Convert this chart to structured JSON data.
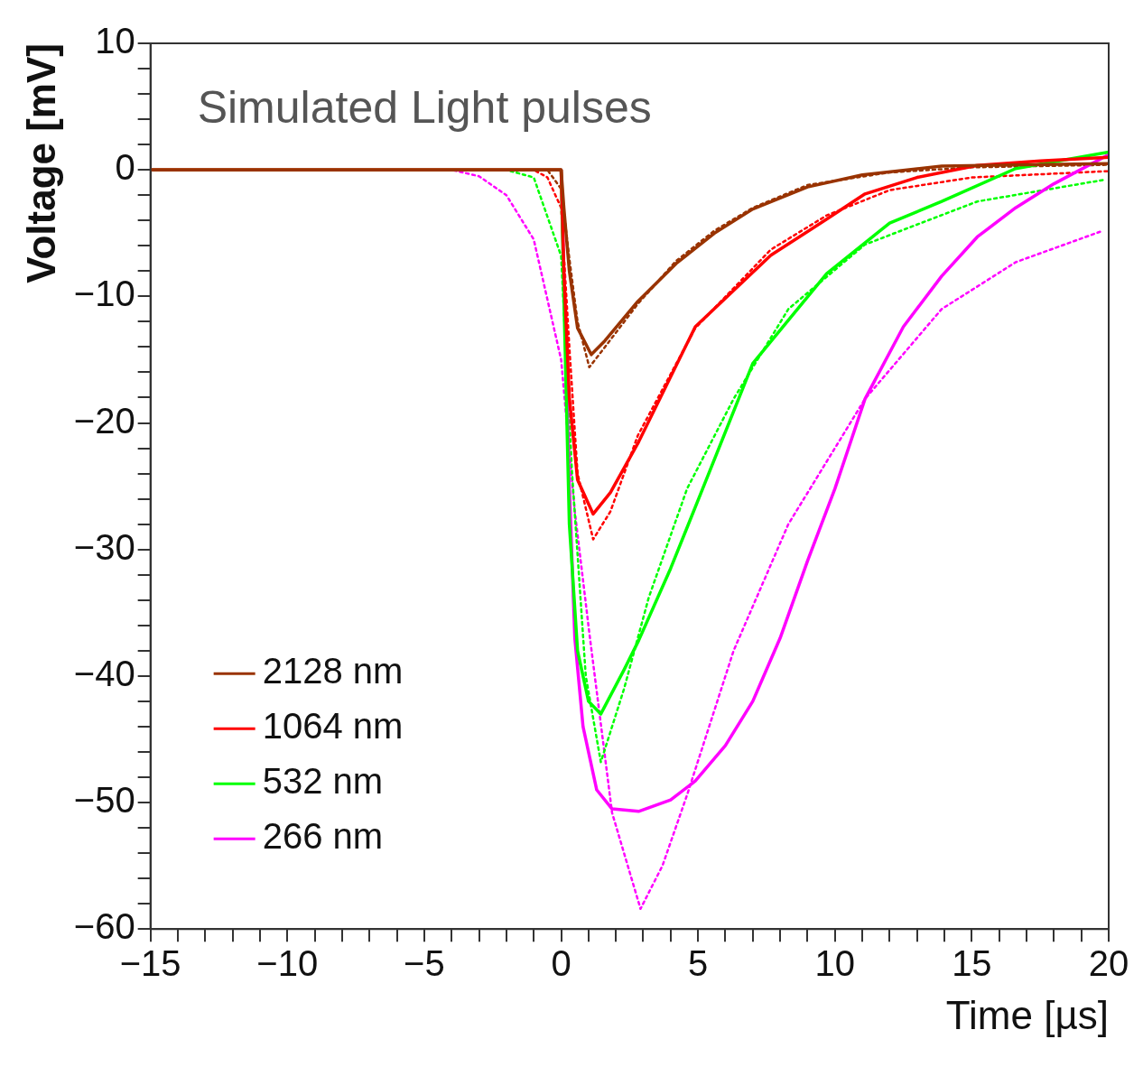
{
  "chart_data": {
    "type": "line",
    "title": "Simulated Light pulses",
    "xlabel": "Time [µs]",
    "ylabel": "Voltage [mV]",
    "xlim": [
      -15,
      20
    ],
    "ylim": [
      -60,
      10
    ],
    "xticks": [
      -15,
      {
        "value": -14,
        "label": null
      },
      {
        "value": -13,
        "label": null
      },
      {
        "value": -12,
        "label": null
      },
      {
        "value": -11,
        "label": null
      },
      -10,
      {
        "value": -9,
        "label": null
      },
      {
        "value": -8,
        "label": null
      },
      {
        "value": -7,
        "label": null
      },
      {
        "value": -6,
        "label": null
      },
      -5,
      {
        "value": -4,
        "label": null
      },
      {
        "value": -3,
        "label": null
      },
      {
        "value": -2,
        "label": null
      },
      {
        "value": -1,
        "label": null
      },
      0,
      {
        "value": 1,
        "label": null
      },
      {
        "value": 2,
        "label": null
      },
      {
        "value": 3,
        "label": null
      },
      {
        "value": 4,
        "label": null
      },
      5,
      {
        "value": 6,
        "label": null
      },
      {
        "value": 7,
        "label": null
      },
      {
        "value": 8,
        "label": null
      },
      {
        "value": 9,
        "label": null
      },
      10,
      {
        "value": 11,
        "label": null
      },
      {
        "value": 12,
        "label": null
      },
      {
        "value": 13,
        "label": null
      },
      {
        "value": 14,
        "label": null
      },
      15,
      {
        "value": 16,
        "label": null
      },
      {
        "value": 17,
        "label": null
      },
      {
        "value": 18,
        "label": null
      },
      {
        "value": 19,
        "label": null
      },
      20
    ],
    "yticks": [
      -60,
      {
        "value": -58,
        "label": null
      },
      {
        "value": -56,
        "label": null
      },
      {
        "value": -54,
        "label": null
      },
      {
        "value": -52,
        "label": null
      },
      -50,
      {
        "value": -48,
        "label": null
      },
      {
        "value": -46,
        "label": null
      },
      {
        "value": -44,
        "label": null
      },
      {
        "value": -42,
        "label": null
      },
      -40,
      {
        "value": -38,
        "label": null
      },
      {
        "value": -36,
        "label": null
      },
      {
        "value": -34,
        "label": null
      },
      {
        "value": -32,
        "label": null
      },
      -30,
      {
        "value": -28,
        "label": null
      },
      {
        "value": -26,
        "label": null
      },
      {
        "value": -24,
        "label": null
      },
      {
        "value": -22,
        "label": null
      },
      -20,
      {
        "value": -18,
        "label": null
      },
      {
        "value": -16,
        "label": null
      },
      {
        "value": -14,
        "label": null
      },
      {
        "value": -12,
        "label": null
      },
      -10,
      {
        "value": -8,
        "label": null
      },
      {
        "value": -6,
        "label": null
      },
      {
        "value": -4,
        "label": null
      },
      {
        "value": -2,
        "label": null
      },
      0,
      {
        "value": 2,
        "label": null
      },
      {
        "value": 4,
        "label": null
      },
      {
        "value": 6,
        "label": null
      },
      {
        "value": 8,
        "label": null
      },
      10
    ],
    "grid": false,
    "legend": "bottom left",
    "marker": "none",
    "series": [
      {
        "name": "2128 nm",
        "color": "#993300",
        "line_style": "solid",
        "x": [
          -15,
          0,
          0.1,
          0.3,
          0.6,
          1.1,
          1.6,
          2.8,
          4.2,
          5.6,
          7,
          9,
          11,
          13.9,
          17,
          20
        ],
        "values": [
          0,
          0,
          -3,
          -8,
          -12.5,
          -14.6,
          -13.5,
          -10.4,
          -7.4,
          -5,
          -3.1,
          -1.35,
          -0.4,
          0.3,
          0.4,
          0.5
        ]
      },
      {
        "name": "1064 nm",
        "color": "#ff0000",
        "line_style": "solid",
        "x": [
          -15,
          0,
          0.1,
          0.3,
          0.6,
          1.17,
          1.8,
          2.83,
          4.9,
          7.66,
          9.7,
          11.1,
          13,
          15.2,
          17.5,
          20
        ],
        "values": [
          0,
          0,
          -8,
          -18,
          -24.5,
          -27.2,
          -25.5,
          -21.5,
          -12.4,
          -6.75,
          -3.9,
          -1.9,
          -0.6,
          0.35,
          0.7,
          1
        ]
      },
      {
        "name": "532 nm",
        "color": "#00ff00",
        "line_style": "solid",
        "x": [
          -15,
          0,
          0.1,
          0.3,
          0.6,
          1,
          1.45,
          2.3,
          2.83,
          4,
          5.17,
          7,
          9.7,
          12,
          13.9,
          16.6,
          20
        ],
        "values": [
          0,
          0,
          -10,
          -28,
          -38,
          -42,
          -43,
          -39.5,
          -37.2,
          -31.5,
          -25.2,
          -15.3,
          -8.2,
          -4.2,
          -2.5,
          0.1,
          1.4
        ]
      },
      {
        "name": "266 nm",
        "color": "#ff00ff",
        "line_style": "solid",
        "x": [
          -15,
          0,
          0.3,
          0.5,
          0.8,
          1.3,
          1.86,
          2.83,
          4,
          4.9,
          6,
          7,
          8,
          9,
          10,
          11.1,
          12.5,
          13.9,
          15.2,
          16.6,
          18,
          20
        ],
        "values": [
          0,
          0,
          -25,
          -37,
          -44,
          -49,
          -50.5,
          -50.7,
          -49.8,
          -48.3,
          -45.5,
          -42,
          -37,
          -30.9,
          -25.2,
          -18.1,
          -12.4,
          -8.4,
          -5.3,
          -3,
          -1.1,
          1.2
        ]
      },
      {
        "color": "#993300",
        "line_style": "dotted",
        "x": [
          -15,
          -0.5,
          0,
          0.3,
          0.6,
          1.03,
          1.6,
          2.8,
          4.2,
          5.6,
          7,
          9,
          12,
          15,
          20
        ],
        "values": [
          0,
          0,
          -1.5,
          -7,
          -12,
          -15.6,
          -14,
          -10.6,
          -7.2,
          -4.8,
          -3,
          -1.2,
          -0.2,
          0.2,
          0.4
        ]
      },
      {
        "color": "#ff0000",
        "line_style": "dotted",
        "x": [
          -15,
          -1,
          -0.5,
          0,
          0.3,
          0.6,
          1.17,
          1.8,
          2.8,
          4.9,
          7.66,
          9.7,
          12,
          15,
          20
        ],
        "values": [
          0,
          0,
          -0.6,
          -3,
          -14,
          -24,
          -29.2,
          -27,
          -21,
          -12.5,
          -6.3,
          -3.6,
          -1.6,
          -0.6,
          -0.1
        ]
      },
      {
        "color": "#00ff00",
        "line_style": "dotted",
        "x": [
          -15,
          -2,
          -1,
          0,
          0.4,
          0.9,
          1.45,
          2.3,
          3.2,
          4.6,
          6.3,
          8.3,
          11.1,
          15.2,
          19.8
        ],
        "values": [
          0,
          0,
          -0.6,
          -6.8,
          -24,
          -40,
          -46.8,
          -41,
          -33.8,
          -25.2,
          -18.1,
          -11,
          -5.9,
          -2.5,
          -0.8
        ]
      },
      {
        "color": "#ff00ff",
        "line_style": "dotted",
        "x": [
          -15,
          -4,
          -3,
          -2,
          -1,
          0,
          0.5,
          1.03,
          1.86,
          2.9,
          3.7,
          4.6,
          6.3,
          8.3,
          11.1,
          13.9,
          16.6,
          19.8
        ],
        "values": [
          0,
          0,
          -0.5,
          -2,
          -5.5,
          -15,
          -27,
          -36.6,
          -50.8,
          -58.4,
          -55,
          -49.4,
          -38,
          -28,
          -18.1,
          -11,
          -7.3,
          -4.8
        ]
      }
    ]
  }
}
